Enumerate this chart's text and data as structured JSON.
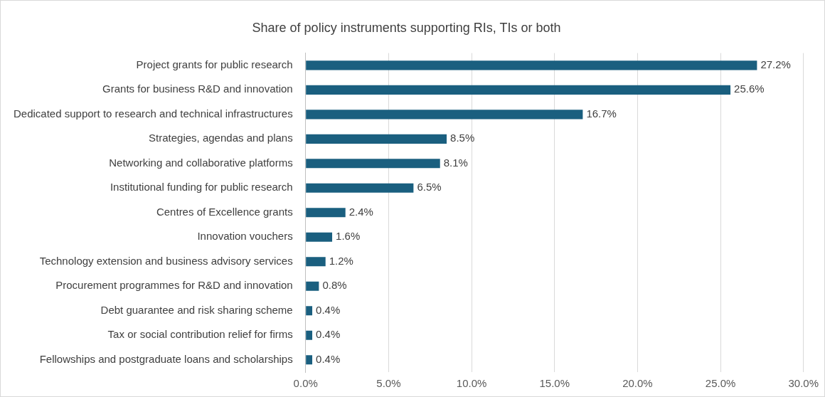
{
  "chart_data": {
    "type": "bar",
    "orientation": "horizontal",
    "title": "Share of policy instruments supporting RIs, TIs or both",
    "categories": [
      "Project grants for public research",
      "Grants for business R&D and innovation",
      "Dedicated support to research and technical infrastructures",
      "Strategies, agendas and plans",
      "Networking and collaborative platforms",
      "Institutional funding for public research",
      "Centres of Excellence grants",
      "Innovation vouchers",
      "Technology extension and business advisory services",
      "Procurement programmes for R&D and innovation",
      "Debt guarantee and risk sharing scheme",
      "Tax or social contribution relief for firms",
      "Fellowships and postgraduate loans and scholarships"
    ],
    "values": [
      27.2,
      25.6,
      16.7,
      8.5,
      8.1,
      6.5,
      2.4,
      1.6,
      1.2,
      0.8,
      0.4,
      0.4,
      0.4
    ],
    "value_labels": [
      "27.2%",
      "25.6%",
      "16.7%",
      "8.5%",
      "8.1%",
      "6.5%",
      "2.4%",
      "1.6%",
      "1.2%",
      "0.8%",
      "0.4%",
      "0.4%",
      "0.4%"
    ],
    "color": "#1a5f7f",
    "xlim": [
      0,
      30
    ],
    "xticks": [
      {
        "value": 0,
        "label": "0.0%"
      },
      {
        "value": 5,
        "label": "5.0%"
      },
      {
        "value": 10,
        "label": "10.0%"
      },
      {
        "value": 15,
        "label": "15.0%"
      },
      {
        "value": 20,
        "label": "20.0%"
      },
      {
        "value": 25,
        "label": "25.0%"
      },
      {
        "value": 30,
        "label": "30.0%"
      }
    ],
    "grid": "x",
    "legend": false
  }
}
